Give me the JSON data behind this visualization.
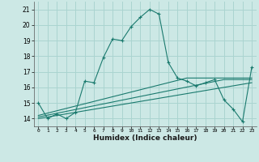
{
  "title": "",
  "xlabel": "Humidex (Indice chaleur)",
  "bg_color": "#cce8e5",
  "grid_color": "#aad4d0",
  "line_color": "#1a7a6e",
  "x": [
    0,
    1,
    2,
    3,
    4,
    5,
    6,
    7,
    8,
    9,
    10,
    11,
    12,
    13,
    14,
    15,
    16,
    17,
    18,
    19,
    20,
    21,
    22,
    23
  ],
  "y_main": [
    15.0,
    14.0,
    14.3,
    14.0,
    14.4,
    16.4,
    16.3,
    17.9,
    19.1,
    19.0,
    19.9,
    20.5,
    21.0,
    20.7,
    17.6,
    16.6,
    16.4,
    16.1,
    16.3,
    16.5,
    15.2,
    14.6,
    13.8,
    17.3
  ],
  "y_line1": [
    14.2,
    14.35,
    14.5,
    14.65,
    14.8,
    14.95,
    15.1,
    15.25,
    15.4,
    15.55,
    15.7,
    15.85,
    16.0,
    16.15,
    16.3,
    16.45,
    16.6,
    16.6,
    16.6,
    16.6,
    16.6,
    16.6,
    16.6,
    16.6
  ],
  "y_line2": [
    14.1,
    14.22,
    14.34,
    14.46,
    14.58,
    14.7,
    14.82,
    14.94,
    15.06,
    15.18,
    15.3,
    15.42,
    15.54,
    15.66,
    15.78,
    15.9,
    16.02,
    16.14,
    16.26,
    16.38,
    16.5,
    16.5,
    16.5,
    16.5
  ],
  "y_line3": [
    14.0,
    14.1,
    14.2,
    14.3,
    14.4,
    14.5,
    14.6,
    14.7,
    14.8,
    14.9,
    15.0,
    15.1,
    15.2,
    15.3,
    15.4,
    15.5,
    15.6,
    15.7,
    15.8,
    15.9,
    16.0,
    16.1,
    16.2,
    16.3
  ],
  "yticks": [
    14,
    15,
    16,
    17,
    18,
    19,
    20,
    21
  ],
  "xtick_labels": [
    "0",
    "1",
    "2",
    "3",
    "4",
    "5",
    "6",
    "7",
    "8",
    "9",
    "10",
    "11",
    "12",
    "13",
    "14",
    "15",
    "16",
    "17",
    "18",
    "19",
    "20",
    "21",
    "22",
    "23"
  ],
  "ylim": [
    13.5,
    21.5
  ],
  "xlim": [
    -0.5,
    23.5
  ]
}
